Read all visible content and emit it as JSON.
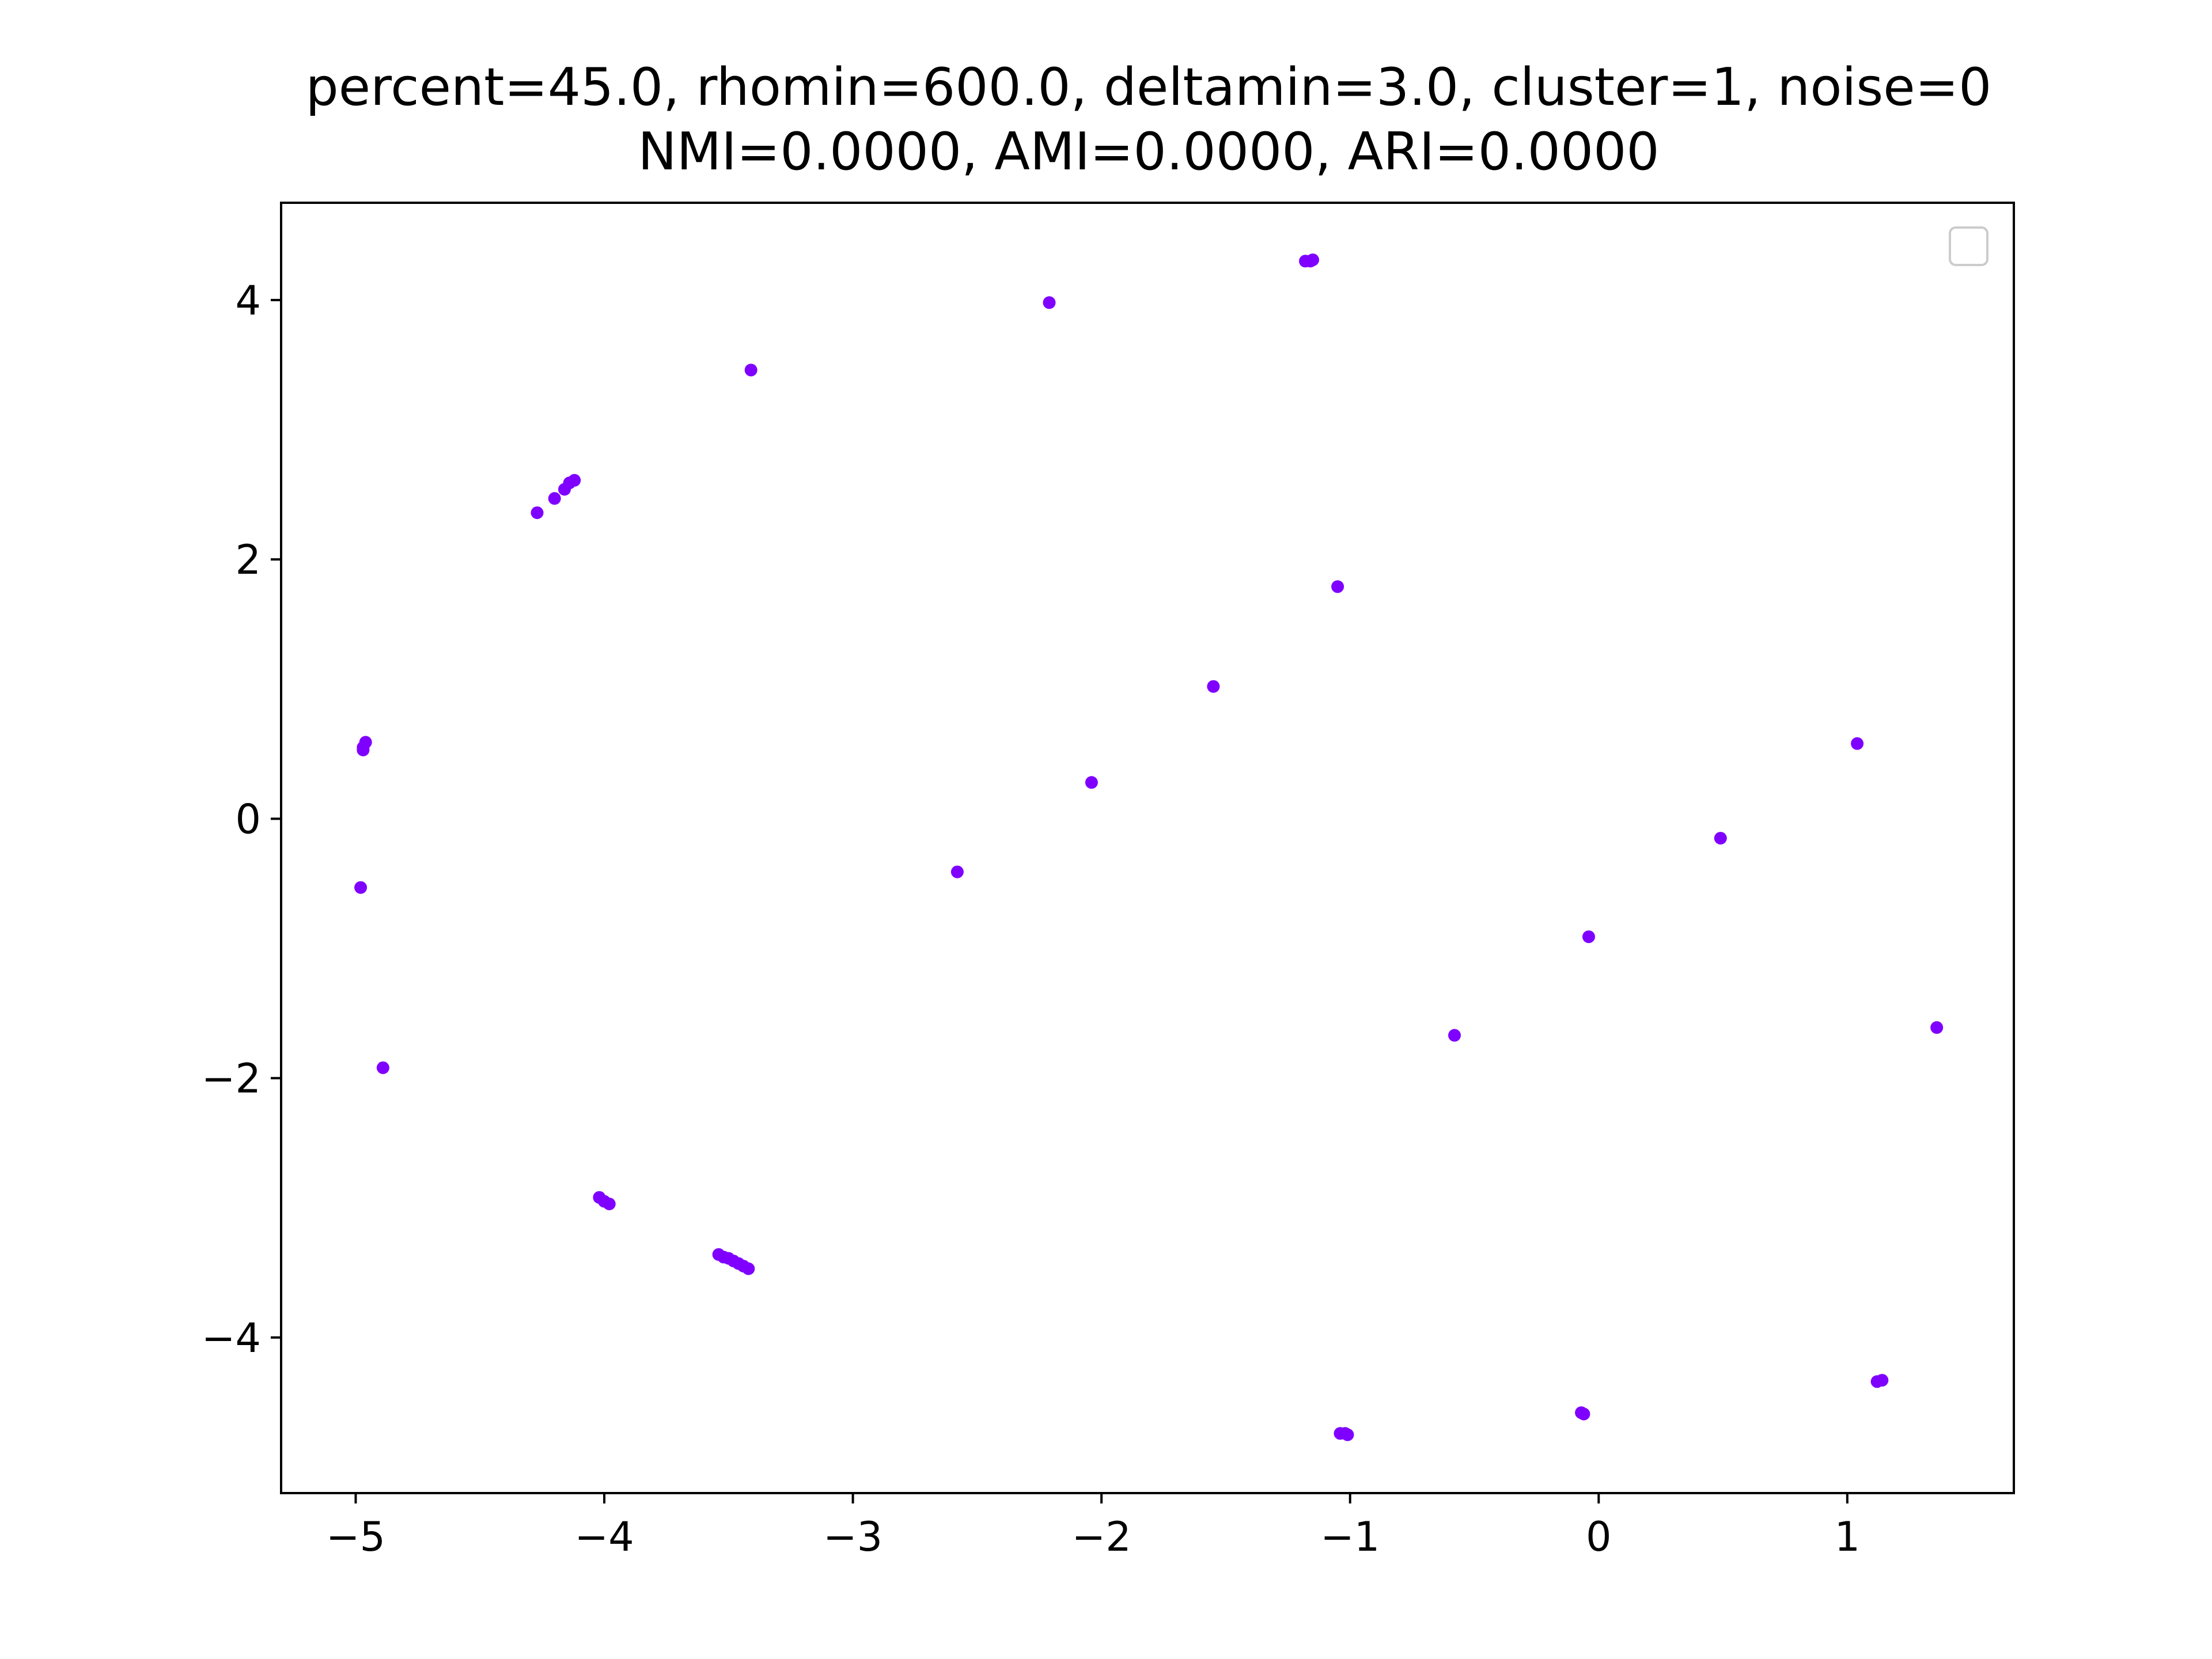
{
  "chart_data": {
    "type": "scatter",
    "title_lines": [
      "percent=45.0, rhomin=600.0, deltamin=3.0, cluster=1, noise=0",
      "NMI=0.0000, AMI=0.0000, ARI=0.0000"
    ],
    "xlabel": "",
    "ylabel": "",
    "xlim": [
      -5.3,
      1.67
    ],
    "ylim": [
      -5.2,
      4.75
    ],
    "x_ticks": [
      -5,
      -4,
      -3,
      -2,
      -1,
      0,
      1
    ],
    "x_tick_labels": [
      "−5",
      "−4",
      "−3",
      "−2",
      "−1",
      "0",
      "1"
    ],
    "y_ticks": [
      4,
      2,
      0,
      -2,
      -4
    ],
    "y_tick_labels": [
      "4",
      "2",
      "0",
      "−2",
      "−4"
    ],
    "grid": false,
    "legend": {
      "placement": "upper right",
      "entries": []
    },
    "marker_color": "#7f00ff",
    "series": [
      {
        "points": [
          [
            -1.18,
            4.3
          ],
          [
            -1.16,
            4.3
          ],
          [
            -1.15,
            4.31
          ],
          [
            -2.21,
            3.98
          ],
          [
            -3.41,
            3.46
          ],
          [
            -4.12,
            2.61
          ],
          [
            -4.14,
            2.59
          ],
          [
            -4.16,
            2.54
          ],
          [
            -4.2,
            2.47
          ],
          [
            -4.27,
            2.36
          ],
          [
            -1.05,
            1.79
          ],
          [
            -1.55,
            1.02
          ],
          [
            -2.04,
            0.28
          ],
          [
            1.04,
            0.58
          ],
          [
            -4.96,
            0.59
          ],
          [
            -4.97,
            0.55
          ],
          [
            -4.97,
            0.53
          ],
          [
            -2.58,
            -0.41
          ],
          [
            0.49,
            -0.15
          ],
          [
            -0.04,
            -0.91
          ],
          [
            -4.98,
            -0.53
          ],
          [
            -0.58,
            -1.67
          ],
          [
            1.36,
            -1.61
          ],
          [
            -4.89,
            -1.92
          ],
          [
            -4.02,
            -2.92
          ],
          [
            -4.0,
            -2.95
          ],
          [
            -3.98,
            -2.97
          ],
          [
            -3.54,
            -3.36
          ],
          [
            -3.52,
            -3.38
          ],
          [
            -3.5,
            -3.39
          ],
          [
            -3.48,
            -3.41
          ],
          [
            -3.46,
            -3.43
          ],
          [
            -3.44,
            -3.45
          ],
          [
            -3.42,
            -3.47
          ],
          [
            -0.07,
            -4.58
          ],
          [
            -0.06,
            -4.59
          ],
          [
            1.12,
            -4.34
          ],
          [
            1.14,
            -4.33
          ],
          [
            -1.04,
            -4.74
          ],
          [
            -1.02,
            -4.74
          ],
          [
            -1.01,
            -4.75
          ]
        ]
      }
    ]
  }
}
